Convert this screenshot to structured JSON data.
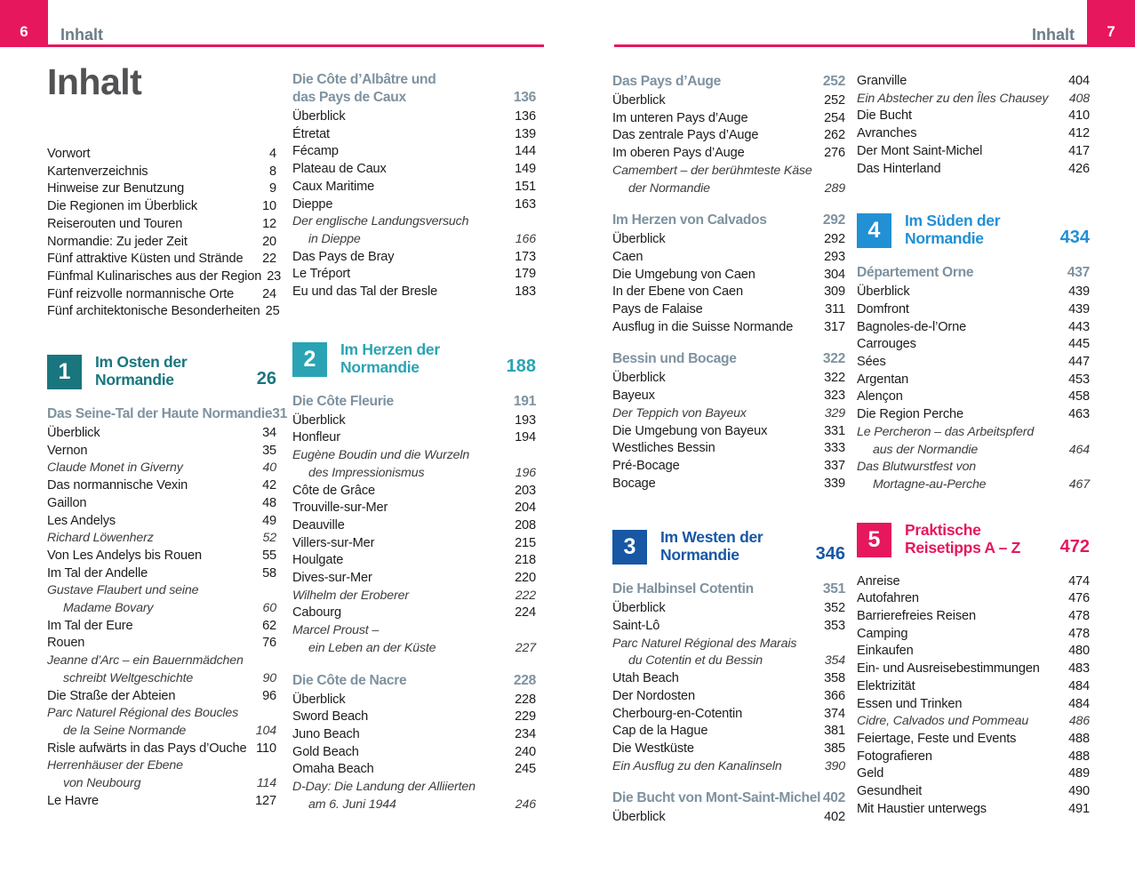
{
  "theme": {
    "accent_pink": "#e6175d",
    "header_gray": "#6b7c89",
    "title_gray": "#525254",
    "body_text": "#1c1c1e",
    "subsection_gray_blue": "#7e929f",
    "section1_teal_dark": "#19767e",
    "section2_teal_light": "#2aa4b4",
    "section3_blue_dark": "#1757a4",
    "section4_blue_light": "#2190d5",
    "section5_pink": "#e6175d"
  },
  "left_page": {
    "page_number": "6",
    "header_label": "Inhalt",
    "title": "Inhalt"
  },
  "right_page": {
    "page_number": "7",
    "header_label": "Inhalt"
  },
  "columns": {
    "col1": [
      {
        "t": "item",
        "label": "Vorwort",
        "page": "4"
      },
      {
        "t": "item",
        "label": "Kartenverzeichnis",
        "page": "8"
      },
      {
        "t": "item",
        "label": "Hinweise zur Benutzung",
        "page": "9"
      },
      {
        "t": "item",
        "label": "Die Regionen im Überblick",
        "page": "10"
      },
      {
        "t": "item",
        "label": "Reiserouten und Touren",
        "page": "12"
      },
      {
        "t": "item",
        "label": "Normandie: Zu jeder Zeit",
        "page": "20"
      },
      {
        "t": "item",
        "label": "Fünf attraktive Küsten und Strände",
        "page": "22"
      },
      {
        "t": "item",
        "label": "Fünfmal Kulinarisches aus der Region",
        "page": "23"
      },
      {
        "t": "item",
        "label": "Fünf reizvolle normannische Orte",
        "page": "24"
      },
      {
        "t": "item",
        "label": "Fünf architektonische Besonderheiten",
        "page": "25"
      },
      {
        "t": "gap",
        "h": 12
      },
      {
        "t": "banner",
        "num": "1",
        "l1": "Im Osten der",
        "l2": "Normandie",
        "page": "26",
        "color": "#19767e"
      },
      {
        "t": "sub",
        "l1": "Das Seine-Tal der Haute Normandie",
        "page": "31"
      },
      {
        "t": "item",
        "label": "Überblick",
        "page": "34"
      },
      {
        "t": "item",
        "label": "Vernon",
        "page": "35"
      },
      {
        "t": "it1",
        "label": "Claude Monet in Giverny",
        "page": "40"
      },
      {
        "t": "item",
        "label": "Das normannische Vexin",
        "page": "42"
      },
      {
        "t": "item",
        "label": "Gaillon",
        "page": "48"
      },
      {
        "t": "item",
        "label": "Les Andelys",
        "page": "49"
      },
      {
        "t": "it1",
        "label": "Richard Löwenherz",
        "page": "52"
      },
      {
        "t": "item",
        "label": "Von Les Andelys bis Rouen",
        "page": "55"
      },
      {
        "t": "item",
        "label": "Im Tal der Andelle",
        "page": "58"
      },
      {
        "t": "it2",
        "l1": "Gustave Flaubert und seine",
        "l2": "Madame Bovary",
        "page": "60"
      },
      {
        "t": "item",
        "label": "Im Tal der Eure",
        "page": "62"
      },
      {
        "t": "item",
        "label": "Rouen",
        "page": "76"
      },
      {
        "t": "it2",
        "l1": "Jeanne d’Arc – ein Bauernmädchen",
        "l2": "schreibt Weltgeschichte",
        "page": "90"
      },
      {
        "t": "item",
        "label": "Die Straße der Abteien",
        "page": "96"
      },
      {
        "t": "it2",
        "l1": "Parc Naturel Régional des Boucles",
        "l2": "de la Seine Normande",
        "page": "104"
      },
      {
        "t": "item",
        "label": "Risle aufwärts in das Pays d’Ouche",
        "page": "110"
      },
      {
        "t": "it2",
        "l1": "Herrenhäuser der Ebene",
        "l2": "von Neubourg",
        "page": "114"
      },
      {
        "t": "item",
        "label": "Le Havre",
        "page": "127"
      }
    ],
    "col2": [
      {
        "t": "sub2",
        "l1": "Die Côte d’Albâtre und",
        "l2": "das Pays de Caux",
        "page": "136"
      },
      {
        "t": "item",
        "label": "Überblick",
        "page": "136"
      },
      {
        "t": "item",
        "label": "Étretat",
        "page": "139"
      },
      {
        "t": "item",
        "label": "Fécamp",
        "page": "144"
      },
      {
        "t": "item",
        "label": "Plateau de Caux",
        "page": "149"
      },
      {
        "t": "item",
        "label": "Caux Maritime",
        "page": "151"
      },
      {
        "t": "item",
        "label": "Dieppe",
        "page": "163"
      },
      {
        "t": "it2",
        "l1": "Der englische Landungsversuch",
        "l2": "in Dieppe",
        "page": "166"
      },
      {
        "t": "item",
        "label": "Das Pays de Bray",
        "page": "173"
      },
      {
        "t": "item",
        "label": "Le Tréport",
        "page": "179"
      },
      {
        "t": "item",
        "label": "Eu und das Tal der Bresle",
        "page": "183"
      },
      {
        "t": "gap",
        "h": 20
      },
      {
        "t": "banner",
        "num": "2",
        "l1": "Im Herzen der",
        "l2": "Normandie",
        "page": "188",
        "color": "#2aa4b4"
      },
      {
        "t": "sub",
        "l1": "Die Côte Fleurie",
        "page": "191"
      },
      {
        "t": "item",
        "label": "Überblick",
        "page": "193"
      },
      {
        "t": "item",
        "label": "Honfleur",
        "page": "194"
      },
      {
        "t": "it2",
        "l1": "Eugène Boudin und die Wurzeln",
        "l2": "des Impressionismus",
        "page": "196"
      },
      {
        "t": "item",
        "label": "Côte de Grâce",
        "page": "203"
      },
      {
        "t": "item",
        "label": "Trouville-sur-Mer",
        "page": "204"
      },
      {
        "t": "item",
        "label": "Deauville",
        "page": "208"
      },
      {
        "t": "item",
        "label": "Villers-sur-Mer",
        "page": "215"
      },
      {
        "t": "item",
        "label": "Houlgate",
        "page": "218"
      },
      {
        "t": "item",
        "label": "Dives-sur-Mer",
        "page": "220"
      },
      {
        "t": "it1",
        "label": "Wilhelm der Eroberer",
        "page": "222"
      },
      {
        "t": "item",
        "label": "Cabourg",
        "page": "224"
      },
      {
        "t": "it2",
        "l1": "Marcel Proust –",
        "l2": "ein Leben an der Küste",
        "page": "227"
      },
      {
        "t": "sub",
        "l1": "Die Côte de Nacre",
        "page": "228"
      },
      {
        "t": "item",
        "label": "Überblick",
        "page": "228"
      },
      {
        "t": "item",
        "label": "Sword Beach",
        "page": "229"
      },
      {
        "t": "item",
        "label": "Juno Beach",
        "page": "234"
      },
      {
        "t": "item",
        "label": "Gold Beach",
        "page": "240"
      },
      {
        "t": "item",
        "label": "Omaha Beach",
        "page": "245"
      },
      {
        "t": "it2",
        "l1": "D-Day: Die Landung der Alliierten",
        "l2": "am 6. Juni 1944",
        "page": "246"
      }
    ],
    "col3": [
      {
        "t": "sub",
        "l1": "Das Pays d’Auge",
        "page": "252"
      },
      {
        "t": "item",
        "label": "Überblick",
        "page": "252"
      },
      {
        "t": "item",
        "label": "Im unteren Pays d’Auge",
        "page": "254"
      },
      {
        "t": "item",
        "label": "Das zentrale Pays d’Auge",
        "page": "262"
      },
      {
        "t": "item",
        "label": "Im oberen Pays d’Auge",
        "page": "276"
      },
      {
        "t": "it2",
        "l1": "Camembert – der berühmteste Käse",
        "l2": "der Normandie",
        "page": "289"
      },
      {
        "t": "sub",
        "l1": "Im Herzen von Calvados",
        "page": "292"
      },
      {
        "t": "item",
        "label": "Überblick",
        "page": "292"
      },
      {
        "t": "item",
        "label": "Caen",
        "page": "293"
      },
      {
        "t": "item",
        "label": "Die Umgebung von Caen",
        "page": "304"
      },
      {
        "t": "item",
        "label": "In der Ebene von Caen",
        "page": "309"
      },
      {
        "t": "item",
        "label": "Pays de Falaise",
        "page": "311"
      },
      {
        "t": "item",
        "label": "Ausflug in die Suisse Normande",
        "page": "317"
      },
      {
        "t": "sub",
        "l1": "Bessin und Bocage",
        "page": "322"
      },
      {
        "t": "item",
        "label": "Überblick",
        "page": "322"
      },
      {
        "t": "item",
        "label": "Bayeux",
        "page": "323"
      },
      {
        "t": "it1",
        "label": "Der Teppich von Bayeux",
        "page": "329"
      },
      {
        "t": "item",
        "label": "Die Umgebung von Bayeux",
        "page": "331"
      },
      {
        "t": "item",
        "label": "Westliches Bessin",
        "page": "333"
      },
      {
        "t": "item",
        "label": "Pré-Bocage",
        "page": "337"
      },
      {
        "t": "item",
        "label": "Bocage",
        "page": "339"
      },
      {
        "t": "gap",
        "h": 16
      },
      {
        "t": "banner",
        "num": "3",
        "l1": "Im Westen der",
        "l2": "Normandie",
        "page": "346",
        "color": "#1757a4"
      },
      {
        "t": "sub",
        "l1": "Die Halbinsel Cotentin",
        "page": "351"
      },
      {
        "t": "item",
        "label": "Überblick",
        "page": "352"
      },
      {
        "t": "item",
        "label": "Saint-Lô",
        "page": "353"
      },
      {
        "t": "it2",
        "l1": "Parc Naturel Régional des Marais",
        "l2": "du Cotentin et du Bessin",
        "page": "354"
      },
      {
        "t": "item",
        "label": "Utah Beach",
        "page": "358"
      },
      {
        "t": "item",
        "label": "Der Nordosten",
        "page": "366"
      },
      {
        "t": "item",
        "label": "Cherbourg-en-Cotentin",
        "page": "374"
      },
      {
        "t": "item",
        "label": "Cap de la Hague",
        "page": "381"
      },
      {
        "t": "item",
        "label": "Die Westküste",
        "page": "385"
      },
      {
        "t": "it1",
        "label": "Ein Ausflug zu den Kanalinseln",
        "page": "390"
      },
      {
        "t": "sub",
        "l1": "Die Bucht von Mont-Saint-Michel",
        "page": "402"
      },
      {
        "t": "item",
        "label": "Überblick",
        "page": "402"
      }
    ],
    "col4": [
      {
        "t": "item",
        "label": "Granville",
        "page": "404"
      },
      {
        "t": "it1",
        "label": "Ein Abstecher zu den Îles Chausey",
        "page": "408"
      },
      {
        "t": "item",
        "label": "Die Bucht",
        "page": "410"
      },
      {
        "t": "item",
        "label": "Avranches",
        "page": "412"
      },
      {
        "t": "item",
        "label": "Der Mont Saint-Michel",
        "page": "417"
      },
      {
        "t": "item",
        "label": "Das Hinterland",
        "page": "426"
      },
      {
        "t": "gap",
        "h": 14
      },
      {
        "t": "banner",
        "num": "4",
        "l1": "Im Süden der",
        "l2": "Normandie",
        "page": "434",
        "color": "#2190d5"
      },
      {
        "t": "sub",
        "l1": "Département Orne",
        "page": "437"
      },
      {
        "t": "item",
        "label": "Überblick",
        "page": "439"
      },
      {
        "t": "item",
        "label": "Domfront",
        "page": "439"
      },
      {
        "t": "item",
        "label": "Bagnoles-de-l’Orne",
        "page": "443"
      },
      {
        "t": "item",
        "label": "Carrouges",
        "page": "445"
      },
      {
        "t": "item",
        "label": "Sées",
        "page": "447"
      },
      {
        "t": "item",
        "label": "Argentan",
        "page": "453"
      },
      {
        "t": "item",
        "label": "Alençon",
        "page": "458"
      },
      {
        "t": "item",
        "label": "Die Region Perche",
        "page": "463"
      },
      {
        "t": "it2",
        "l1": "Le Percheron – das Arbeitspferd",
        "l2": "aus der Normandie",
        "page": "464"
      },
      {
        "t": "it2",
        "l1": "Das Blutwurstfest von",
        "l2": "Mortagne-au-Perche",
        "page": "467"
      },
      {
        "t": "gap",
        "h": 6
      },
      {
        "t": "banner",
        "num": "5",
        "l1": "Praktische",
        "l2": "Reisetipps A – Z",
        "page": "472",
        "color": "#e6175d"
      },
      {
        "t": "item",
        "label": "Anreise",
        "page": "474"
      },
      {
        "t": "item",
        "label": "Autofahren",
        "page": "476"
      },
      {
        "t": "item",
        "label": "Barrierefreies Reisen",
        "page": "478"
      },
      {
        "t": "item",
        "label": "Camping",
        "page": "478"
      },
      {
        "t": "item",
        "label": "Einkaufen",
        "page": "480"
      },
      {
        "t": "item",
        "label": "Ein- und Ausreisebestimmungen",
        "page": "483"
      },
      {
        "t": "item",
        "label": "Elektrizität",
        "page": "484"
      },
      {
        "t": "item",
        "label": "Essen und Trinken",
        "page": "484"
      },
      {
        "t": "it1",
        "label": "Cidre, Calvados und Pommeau",
        "page": "486"
      },
      {
        "t": "item",
        "label": "Feiertage, Feste und Events",
        "page": "488"
      },
      {
        "t": "item",
        "label": "Fotografieren",
        "page": "488"
      },
      {
        "t": "item",
        "label": "Geld",
        "page": "489"
      },
      {
        "t": "item",
        "label": "Gesundheit",
        "page": "490"
      },
      {
        "t": "item",
        "label": "Mit Haustier unterwegs",
        "page": "491"
      }
    ]
  }
}
